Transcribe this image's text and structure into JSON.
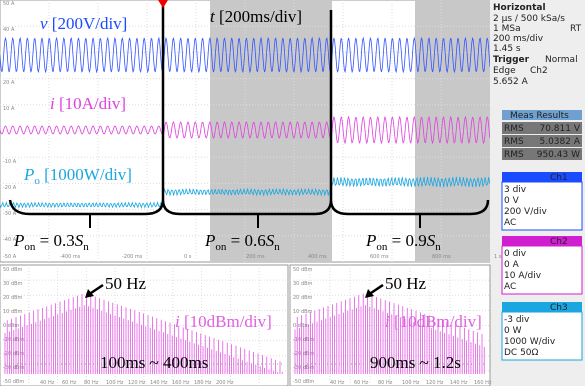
{
  "scope": {
    "y_labels": [
      "50 A",
      "40 A",
      "20 A",
      "10 A",
      "-10 A",
      "-20 A",
      "-30 A",
      "-40 A",
      "-50 A"
    ],
    "x_labels": [
      "-400 ms",
      "-200 ms",
      "0 s",
      "200 ms",
      "400 ms",
      "600 ms",
      "800 ms",
      "1 s"
    ],
    "v_label": {
      "sym": "v",
      "unit": " [200V/div]"
    },
    "t_label": {
      "sym": "t",
      "unit": " [200ms/div]"
    },
    "i_label": {
      "sym": "i",
      "unit": " [10A/div]"
    },
    "p_label": {
      "sym": "P",
      "sub": "o",
      "unit": " [1000W/div]"
    },
    "stages": [
      {
        "sym": "P",
        "sub": "on",
        "mid": " = 0.3",
        "sym2": "S",
        "sub2": "n"
      },
      {
        "sym": "P",
        "sub": "on",
        "mid": " = 0.6",
        "sym2": "S",
        "sub2": "n"
      },
      {
        "sym": "P",
        "sub": "on",
        "mid": " = 0.9",
        "sym2": "S",
        "sub2": "n"
      }
    ]
  },
  "side": {
    "horizontal": "Horizontal",
    "timebase": "2 µs / 500 kSa/s",
    "msa": "1 MSa",
    "rt": "RT",
    "div": "200 ms/div",
    "pos": "1.45 s",
    "trigger": "Trigger",
    "mode": "Normal",
    "edge": "Edge",
    "src": "Ch2",
    "level": "5.652 A",
    "meas": "Meas Results",
    "rms": [
      {
        "k": "RMS",
        "v": "70.811 V"
      },
      {
        "k": "RMS",
        "v": "5.0382 A"
      },
      {
        "k": "RMS",
        "v": "950.43 W"
      }
    ],
    "channels": [
      {
        "name": "Ch1",
        "lines": [
          "3 div",
          "0 V",
          "200 V/div",
          "AC"
        ],
        "color": "#1a4bff"
      },
      {
        "name": "Ch2",
        "lines": [
          "0 div",
          "0 A",
          "10 A/div",
          "AC"
        ],
        "color": "#d01ed0"
      },
      {
        "name": "Ch3",
        "lines": [
          "-3 div",
          "0 W",
          "1000 W/div",
          "DC 50Ω"
        ],
        "color": "#1aa6e0"
      }
    ]
  },
  "fft": [
    {
      "peak": "50 Hz",
      "label": {
        "sym": "i",
        "unit": " [10dBm/div]"
      },
      "window": "100ms ~ 400ms",
      "y_labels": [
        "50 dBm",
        "30 dBm",
        "20 dBm",
        "10 dBm",
        "0 dBm",
        "-10 dBm",
        "-20 dBm",
        "-30 dBm",
        "-50 dBm"
      ],
      "x_labels": [
        "40 Hz",
        "60 Hz",
        "80 Hz",
        "100 Hz",
        "120 Hz",
        "140 Hz",
        "160 Hz",
        "180 Hz",
        "200 Hz"
      ]
    },
    {
      "peak": "50 Hz",
      "label": {
        "sym": "i",
        "unit": " [10dBm/div]"
      },
      "window": "900ms ~ 1.2s",
      "y_labels": [
        "50 dBm",
        "30 dBm",
        "20 dBm",
        "10 dBm",
        "0 dBm",
        "-10 dBm",
        "-20 dBm",
        "-30 dBm",
        "-50 dBm"
      ],
      "x_labels": [
        "40 Hz",
        "60 Hz",
        "80 Hz",
        "100 Hz",
        "120 Hz",
        "140 Hz",
        "160 Hz"
      ]
    }
  ]
}
